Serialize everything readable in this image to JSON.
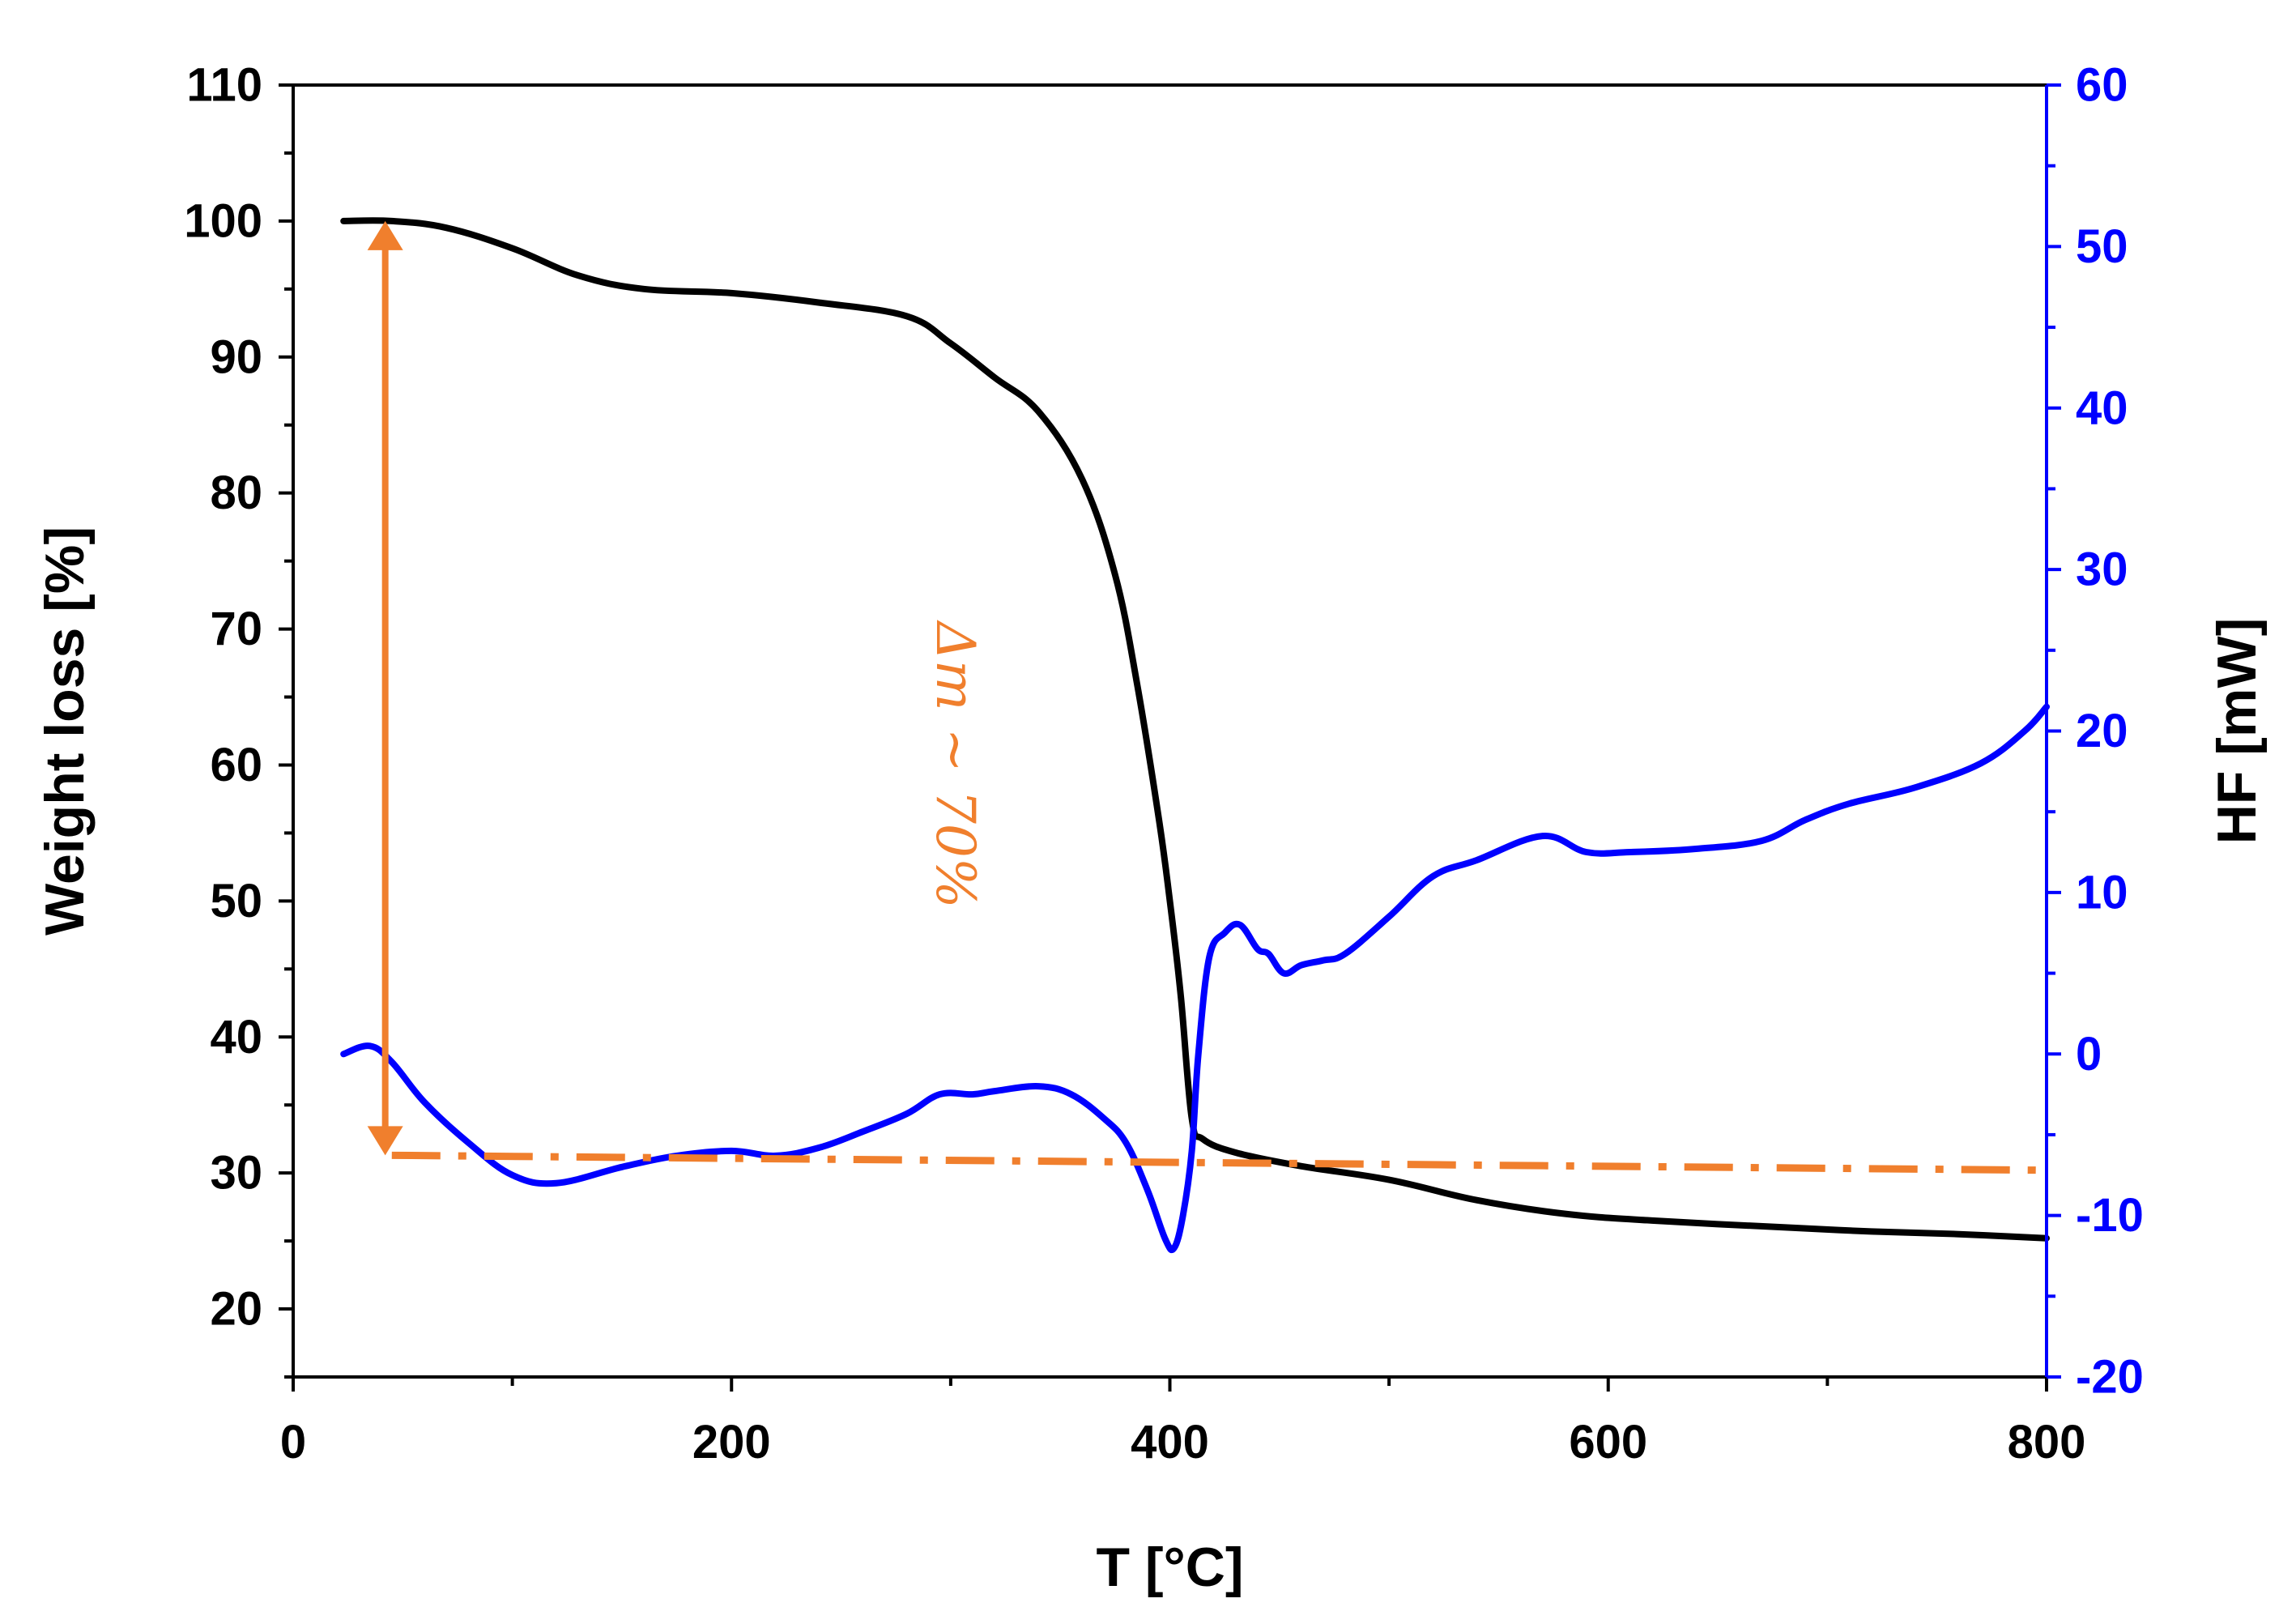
{
  "chart_data": {
    "type": "line",
    "title": "",
    "xlabel": "T [°C]",
    "ylabel": "Weight loss [%]",
    "y2label": "HF [mW]",
    "xlim": [
      0,
      800
    ],
    "ylim": [
      15,
      110
    ],
    "y2lim": [
      -20,
      60
    ],
    "grid": false,
    "x_ticks": [
      0,
      200,
      400,
      600,
      800
    ],
    "x_minor_ticks": [
      100,
      300,
      500,
      700
    ],
    "y_ticks": [
      20,
      30,
      40,
      50,
      60,
      70,
      80,
      90,
      100,
      110
    ],
    "y2_ticks": [
      -20,
      -10,
      0,
      10,
      20,
      30,
      40,
      50,
      60
    ],
    "colors": {
      "weight": "#000000",
      "hf": "#0000ff",
      "annotation": "#f07f2d",
      "axis": "#000000",
      "axis2": "#0000ff"
    },
    "series": [
      {
        "name": "Weight loss",
        "axis": "left",
        "x": [
          23,
          45,
          70,
          100,
          130,
          160,
          200,
          240,
          280,
          300,
          320,
          340,
          360,
          375,
          385,
          395,
          400,
          405,
          410,
          415,
          430,
          460,
          500,
          540,
          580,
          620,
          680,
          720,
          760,
          800
        ],
        "y": [
          100,
          100,
          99.5,
          98,
          96,
          95,
          94.7,
          94,
          93,
          91,
          88.5,
          86,
          81,
          74,
          66,
          56,
          50,
          43,
          34,
          32.5,
          31.5,
          30.5,
          29.5,
          28,
          27,
          26.5,
          26,
          25.7,
          25.5,
          25.2
        ]
      },
      {
        "name": "HF",
        "axis": "right",
        "x": [
          23,
          35,
          45,
          60,
          80,
          100,
          120,
          150,
          175,
          200,
          220,
          240,
          260,
          280,
          295,
          310,
          320,
          340,
          355,
          370,
          380,
          390,
          398,
          402,
          406,
          410,
          413,
          418,
          425,
          432,
          440,
          445,
          452,
          460,
          470,
          480,
          500,
          520,
          540,
          570,
          590,
          610,
          640,
          670,
          690,
          710,
          740,
          770,
          790,
          800
        ],
        "y": [
          0,
          0.5,
          -0.5,
          -3,
          -5.5,
          -7.5,
          -8,
          -7,
          -6.3,
          -6,
          -6.3,
          -5.8,
          -4.8,
          -3.7,
          -2.5,
          -2.5,
          -2.3,
          -2,
          -2.5,
          -4,
          -5.5,
          -8.5,
          -11.5,
          -12,
          -10,
          -6,
          0,
          6,
          7.5,
          8,
          6.5,
          6.2,
          5,
          5.5,
          5.8,
          6.2,
          8.5,
          11,
          12,
          13.5,
          12.5,
          12.5,
          12.7,
          13.2,
          14.5,
          15.5,
          16.5,
          18,
          20,
          21.5
        ]
      }
    ],
    "annotations": [
      {
        "type": "double-arrow",
        "x": 42,
        "y_from": 100,
        "y_to": 31.3
      },
      {
        "type": "dash-dot-line",
        "x": [
          45,
          800
        ],
        "y": [
          31.3,
          30.2
        ]
      },
      {
        "type": "text",
        "text": "Δm ~ 70%",
        "x": 300,
        "y": 60,
        "rotation": 90
      }
    ]
  }
}
